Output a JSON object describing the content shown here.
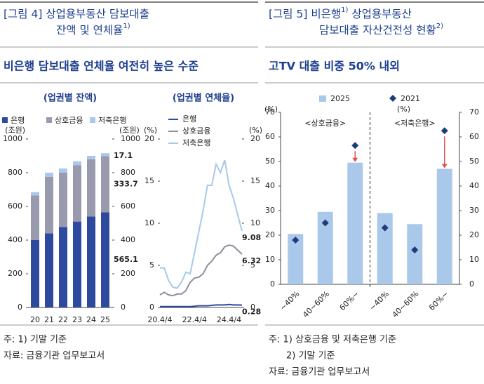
{
  "figures": [
    {
      "title_lines": [
        [
          {
            "text": "[그림 4] 상업용부동산 담보대출"
          }
        ],
        [
          {
            "text": "잔액 및 연체율"
          },
          {
            "sup": "1)"
          }
        ]
      ],
      "headline": "비은행 담보대출 연체율 여전히 높은 수준",
      "notes": [
        "주: 1) 기말 기준",
        "자료: 금융기관 업무보고서"
      ]
    },
    {
      "title_lines": [
        [
          {
            "text": "[그림 5] 비은행"
          },
          {
            "sup": "1)"
          },
          {
            "text": " 상업용부동산"
          }
        ],
        [
          {
            "text": "담보대출 자산건전성 현황"
          },
          {
            "sup": "2)"
          }
        ]
      ],
      "headline": "고TV 대출 비중 50% 내외",
      "notes": [
        "주: 1) 상호금융 및 저축은행 기준",
        "2) 기말 기준",
        "자료: 금융기관 업무보고서"
      ]
    }
  ],
  "chart_data": [
    {
      "type": "bar",
      "stacked": true,
      "title": "(업권별 잔액)",
      "y_unit": "(조원)",
      "y2_unit": "(조원)",
      "categories": [
        "20",
        "21",
        "22",
        "23",
        "24",
        "25"
      ],
      "series": [
        {
          "name": "은행",
          "color": "#2e4a9e",
          "values": [
            400,
            440,
            478,
            510,
            540,
            565.1
          ]
        },
        {
          "name": "상호금융",
          "color": "#9a9aae",
          "values": [
            265,
            335,
            322,
            335,
            340,
            333.7
          ]
        },
        {
          "name": "저축은행",
          "color": "#a9c8ea",
          "values": [
            20,
            25,
            25,
            22,
            20,
            17.1
          ]
        }
      ],
      "ylim": [
        0,
        1000
      ],
      "yticks": [
        0,
        200,
        400,
        600,
        800,
        1000
      ],
      "y2lim": [
        0,
        1000
      ],
      "y2ticks": [
        0,
        200,
        400,
        600,
        800,
        1000
      ],
      "end_labels": true,
      "legend": "top"
    },
    {
      "type": "line",
      "title": "(업권별 연체율)",
      "y_unit": "(%)",
      "y2_unit": "(%)",
      "categories": [
        "20.4/4",
        null,
        null,
        null,
        null,
        null,
        null,
        null,
        "22.4/4",
        null,
        null,
        null,
        null,
        null,
        null,
        null,
        "24.4/4",
        null,
        null,
        null
      ],
      "series": [
        {
          "name": "은행",
          "color": "#2e4a9e",
          "values": [
            0.1,
            0.1,
            0.1,
            0.1,
            0.1,
            0.1,
            0.1,
            0.1,
            0.15,
            0.2,
            0.2,
            0.2,
            0.25,
            0.3,
            0.3,
            0.3,
            0.35,
            0.3,
            0.3,
            0.28
          ]
        },
        {
          "name": "상호금융",
          "color": "#8e8e9e",
          "values": [
            1.5,
            1.8,
            1.5,
            1.4,
            1.6,
            1.6,
            2.0,
            3.0,
            3.5,
            3.6,
            4.0,
            5.0,
            5.5,
            6.2,
            6.5,
            7.2,
            7.4,
            7.3,
            6.8,
            6.32
          ]
        },
        {
          "name": "저축은행",
          "color": "#a9c8ea",
          "values": [
            4.7,
            4.7,
            3.2,
            2.4,
            2.3,
            3.0,
            4.2,
            4.0,
            6.5,
            9.0,
            11.5,
            14.5,
            14.5,
            17.0,
            16.0,
            17.5,
            14.5,
            13.0,
            11.0,
            9.08
          ]
        }
      ],
      "ylim": [
        0,
        20
      ],
      "yticks": [
        0,
        5,
        10,
        15,
        20
      ],
      "y2lim": [
        0,
        20
      ],
      "y2ticks": [
        0,
        5,
        10,
        15,
        20
      ],
      "end_labels": true,
      "legend": "upper left"
    },
    {
      "type": "bar",
      "y_unit": "(%)",
      "y2_unit": "(%)",
      "categories": [
        "~40%",
        "40~60%",
        "60%~",
        "~40%",
        "40~60%",
        "60%~"
      ],
      "groups": [
        "<상호금융>",
        "<저축은행>"
      ],
      "series": [
        {
          "name": "2025",
          "type": "bar",
          "color": "#a9c8ea",
          "values": [
            20.5,
            29.5,
            49.5,
            29,
            24.5,
            47
          ]
        },
        {
          "name": "2021",
          "type": "scatter",
          "color": "#1f3c7a",
          "values": [
            18,
            25,
            56.5,
            23,
            14,
            62.5
          ]
        }
      ],
      "ylim": [
        0,
        70
      ],
      "yticks": [
        0,
        10,
        20,
        30,
        40,
        50,
        60,
        70
      ],
      "y2lim": [
        0,
        70
      ],
      "y2ticks": [
        0,
        10,
        20,
        30,
        40,
        50,
        60,
        70
      ],
      "legend": "top"
    }
  ]
}
